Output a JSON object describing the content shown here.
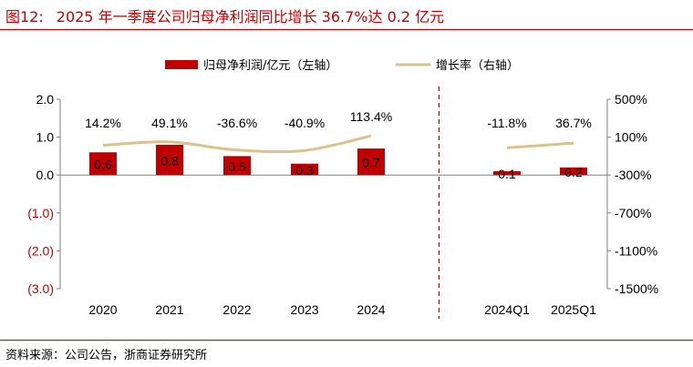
{
  "figure": {
    "number": "图12:",
    "title": "2025 年一季度公司归母净利润同比增长 36.7%达 0.2 亿元",
    "source": "资料来源：公司公告，浙商证券研究所"
  },
  "chart_data": {
    "type": "bar",
    "categories": [
      "2020",
      "2021",
      "2022",
      "2023",
      "2024",
      "2024Q1",
      "2025Q1"
    ],
    "series": [
      {
        "name": "归母净利润/亿元（左轴）",
        "type": "bar",
        "axis": "left",
        "values": [
          0.6,
          0.8,
          0.5,
          0.3,
          0.7,
          0.1,
          0.2
        ],
        "labels": [
          "0.6",
          "0.8",
          "0.5",
          "0.3",
          "0.7",
          "0.1",
          "0.2"
        ],
        "color": "#c00000"
      },
      {
        "name": "增长率（右轴）",
        "type": "line",
        "axis": "right",
        "segments": [
          [
            0,
            4
          ],
          [
            5,
            6
          ]
        ],
        "values": [
          14.2,
          49.1,
          -36.6,
          -40.9,
          113.4,
          -11.8,
          36.7
        ],
        "labels": [
          "14.2%",
          "49.1%",
          "-36.6%",
          "-40.9%",
          "113.4%",
          "-11.8%",
          "36.7%"
        ],
        "color": "#d9c38a"
      }
    ],
    "left_axis": {
      "range": [
        -3.0,
        2.0
      ],
      "ticks": [
        2.0,
        1.0,
        0.0,
        -1.0,
        -2.0,
        -3.0
      ],
      "tick_labels": [
        "2.0",
        "1.0",
        "0.0",
        "(1.0)",
        "(2.0)",
        "(3.0)"
      ]
    },
    "right_axis": {
      "range": [
        -1500,
        500
      ],
      "ticks": [
        500,
        100,
        -300,
        -700,
        -1100,
        -1500
      ],
      "tick_labels": [
        "500%",
        "100%",
        "-300%",
        "-700%",
        "-1100%",
        "-1500%"
      ]
    },
    "divider_after_index": 4,
    "legend_position": "top-center",
    "negative_label_color": "#c00000"
  }
}
